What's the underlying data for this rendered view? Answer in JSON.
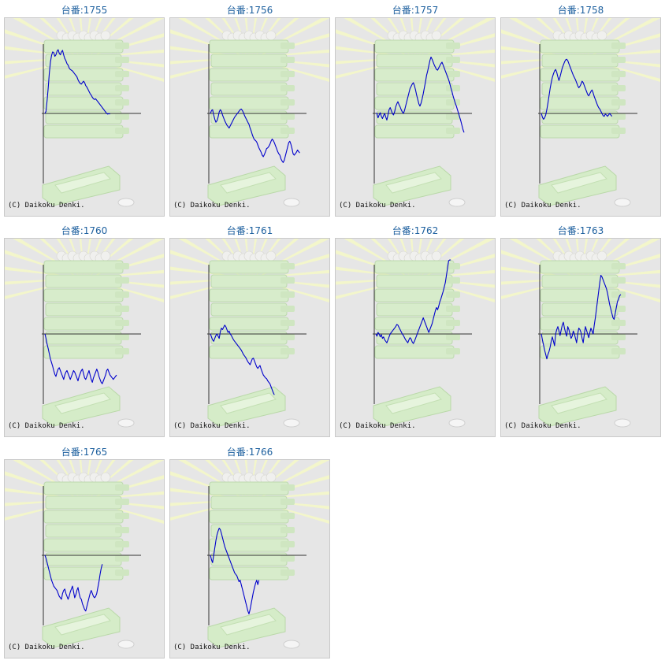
{
  "copyright": "(C) Daikoku Denki.",
  "colors": {
    "title": "#1c5f9e",
    "line": "#0000cc",
    "axis": "#333333",
    "background": "#e6e6e6"
  },
  "chart_data": [
    {
      "type": "line",
      "title": "台番:1755",
      "values": [
        0.0,
        3,
        18,
        35,
        55,
        70,
        79,
        84,
        83,
        78,
        80,
        85,
        87,
        82,
        80,
        84,
        86,
        80,
        75,
        72,
        68,
        66,
        62,
        60,
        59,
        58,
        56,
        54,
        52,
        50,
        46,
        43,
        41,
        40,
        42,
        44,
        42,
        38,
        36,
        33,
        30,
        27,
        25,
        22,
        20,
        19,
        20,
        18,
        16,
        14,
        12,
        10,
        8,
        6,
        4,
        2,
        0,
        -1,
        0,
        -1
      ]
    },
    {
      "type": "line",
      "title": "台番:1756",
      "values": [
        0,
        4,
        5,
        -2,
        -8,
        -12,
        -10,
        -5,
        2,
        5,
        3,
        -2,
        -6,
        -10,
        -13,
        -16,
        -18,
        -20,
        -17,
        -14,
        -11,
        -8,
        -5,
        -3,
        -1,
        1,
        3,
        5,
        6,
        4,
        1,
        -3,
        -6,
        -9,
        -12,
        -15,
        -20,
        -24,
        -29,
        -33,
        -36,
        -37,
        -39,
        -43,
        -47,
        -50,
        -53,
        -57,
        -59,
        -56,
        -52,
        -48,
        -47,
        -45,
        -42,
        -38,
        -35,
        -37,
        -40,
        -44,
        -48,
        -52,
        -55,
        -57,
        -62,
        -65,
        -67,
        -64,
        -58,
        -52,
        -46,
        -40,
        -38,
        -42,
        -48,
        -55,
        -57,
        -55,
        -53,
        -50,
        -52,
        -54
      ]
    },
    {
      "type": "line",
      "title": "台番:1757",
      "values": [
        0,
        0,
        -6,
        -2,
        1,
        -4,
        -7,
        -3,
        0,
        -5,
        -9,
        -2,
        5,
        8,
        4,
        0,
        -2,
        2,
        9,
        13,
        16,
        12,
        9,
        5,
        2,
        0,
        4,
        10,
        16,
        22,
        28,
        34,
        37,
        40,
        42,
        38,
        32,
        25,
        19,
        13,
        10,
        14,
        20,
        27,
        35,
        43,
        52,
        58,
        65,
        72,
        77,
        74,
        70,
        66,
        63,
        60,
        59,
        62,
        65,
        68,
        70,
        66,
        62,
        58,
        54,
        50,
        46,
        41,
        35,
        30,
        24,
        19,
        14,
        10,
        5,
        0,
        -5,
        -10,
        -16,
        -22,
        -26
      ]
    },
    {
      "type": "line",
      "title": "台番:1758",
      "values": [
        0,
        -5,
        -8,
        -6,
        -2,
        5,
        14,
        24,
        34,
        42,
        49,
        54,
        58,
        60,
        56,
        50,
        45,
        50,
        56,
        62,
        66,
        70,
        73,
        74,
        72,
        68,
        64,
        60,
        56,
        52,
        49,
        46,
        42,
        38,
        35,
        37,
        40,
        44,
        42,
        38,
        34,
        30,
        26,
        24,
        27,
        30,
        32,
        28,
        23,
        19,
        15,
        11,
        8,
        6,
        3,
        0,
        -3,
        -4,
        -1,
        -2,
        -4,
        -2,
        0,
        -2,
        -4
      ]
    },
    {
      "type": "line",
      "title": "台番:1760",
      "values": [
        0,
        -6,
        -14,
        -20,
        -27,
        -34,
        -39,
        -44,
        -50,
        -55,
        -58,
        -52,
        -48,
        -46,
        -50,
        -54,
        -58,
        -62,
        -56,
        -52,
        -50,
        -54,
        -58,
        -62,
        -58,
        -54,
        -50,
        -52,
        -56,
        -60,
        -64,
        -58,
        -54,
        -50,
        -48,
        -54,
        -60,
        -62,
        -58,
        -54,
        -50,
        -56,
        -62,
        -66,
        -60,
        -56,
        -52,
        -48,
        -52,
        -58,
        -62,
        -66,
        -68,
        -64,
        -60,
        -56,
        -50,
        -48,
        -52,
        -56,
        -58,
        -60,
        -62,
        -60,
        -58,
        -56
      ]
    },
    {
      "type": "line",
      "title": "台番:1761",
      "values": [
        0,
        -4,
        -8,
        -10,
        -6,
        -2,
        0,
        -3,
        -6,
        3,
        8,
        6,
        9,
        12,
        10,
        6,
        2,
        4,
        0,
        -2,
        -5,
        -8,
        -10,
        -12,
        -14,
        -16,
        -18,
        -20,
        -22,
        -25,
        -28,
        -30,
        -32,
        -35,
        -38,
        -40,
        -42,
        -38,
        -34,
        -33,
        -37,
        -41,
        -45,
        -47,
        -45,
        -43,
        -48,
        -52,
        -56,
        -58,
        -60,
        -61,
        -64,
        -66,
        -68,
        -72,
        -76,
        -80,
        -83
      ]
    },
    {
      "type": "line",
      "title": "台番:1762",
      "values": [
        0,
        -3,
        2,
        0,
        -4,
        -1,
        -6,
        -4,
        -8,
        -10,
        -12,
        -8,
        -4,
        0,
        2,
        4,
        6,
        8,
        10,
        13,
        12,
        9,
        6,
        3,
        0,
        -2,
        -5,
        -8,
        -10,
        -12,
        -8,
        -5,
        -7,
        -11,
        -13,
        -10,
        -6,
        -2,
        2,
        6,
        10,
        14,
        18,
        22,
        18,
        14,
        10,
        6,
        2,
        6,
        10,
        14,
        20,
        26,
        32,
        36,
        33,
        38,
        44,
        48,
        53,
        58,
        64,
        70,
        80,
        90,
        100,
        108,
        116
      ]
    },
    {
      "type": "line",
      "title": "台番:1763",
      "values": [
        0,
        -8,
        -15,
        -22,
        -28,
        -34,
        -28,
        -24,
        -18,
        -10,
        -4,
        -10,
        -16,
        0,
        6,
        10,
        4,
        -2,
        5,
        12,
        16,
        8,
        2,
        -3,
        10,
        6,
        0,
        -6,
        -3,
        4,
        0,
        -6,
        -12,
        0,
        8,
        6,
        2,
        -6,
        -12,
        0,
        10,
        5,
        0,
        -5,
        2,
        8,
        4,
        0,
        12,
        22,
        34,
        46,
        58,
        70,
        80,
        78,
        74,
        70,
        66,
        62,
        56,
        48,
        40,
        34,
        28,
        22,
        20,
        28,
        36,
        44,
        48,
        52,
        54
      ]
    },
    {
      "type": "line",
      "title": "台番:1765",
      "values": [
        0,
        -4,
        -10,
        -16,
        -22,
        -28,
        -34,
        -38,
        -42,
        -44,
        -46,
        -48,
        -52,
        -56,
        -58,
        -60,
        -52,
        -48,
        -46,
        -52,
        -56,
        -60,
        -56,
        -50,
        -46,
        -42,
        -50,
        -58,
        -54,
        -48,
        -44,
        -52,
        -58,
        -60,
        -66,
        -70,
        -74,
        -76,
        -70,
        -64,
        -58,
        -52,
        -48,
        -52,
        -56,
        -58,
        -56,
        -52,
        -44,
        -36,
        -26,
        -18,
        -12
      ]
    },
    {
      "type": "line",
      "title": "台番:1766",
      "values": [
        0,
        -6,
        -10,
        0,
        10,
        20,
        28,
        33,
        37,
        35,
        30,
        24,
        18,
        12,
        8,
        4,
        0,
        -4,
        -8,
        -12,
        -16,
        -20,
        -24,
        -26,
        -28,
        -32,
        -36,
        -34,
        -40,
        -46,
        -52,
        -58,
        -64,
        -70,
        -76,
        -80,
        -74,
        -66,
        -58,
        -50,
        -44,
        -38,
        -34,
        -40,
        -34
      ]
    }
  ]
}
